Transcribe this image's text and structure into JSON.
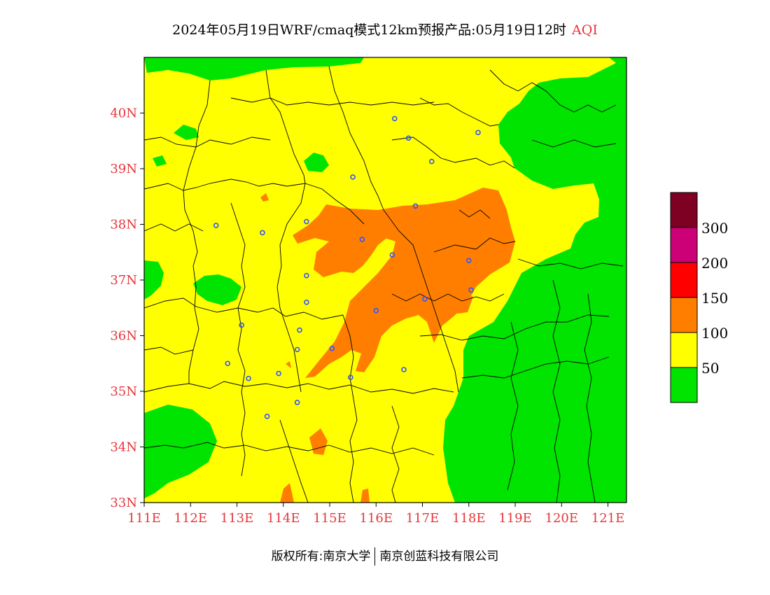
{
  "title": {
    "main": "2024年05月19日WRF/cmaq模式12km预报产品:05月19日12时",
    "variable": "AQI"
  },
  "axes": {
    "x_ticks": [
      "111E",
      "112E",
      "113E",
      "114E",
      "115E",
      "116E",
      "117E",
      "118E",
      "119E",
      "120E",
      "121E"
    ],
    "y_ticks": [
      "33N",
      "34N",
      "35N",
      "36N",
      "37N",
      "38N",
      "39N",
      "40N"
    ],
    "x_range": [
      111,
      121.4
    ],
    "y_range": [
      33,
      41
    ]
  },
  "legend": {
    "levels": [
      "50",
      "100",
      "150",
      "200",
      "300"
    ],
    "colors": [
      "#00e400",
      "#ffff00",
      "#ff7e00",
      "#ff0000",
      "#cc0077",
      "#7e0023"
    ]
  },
  "copyright": {
    "left": "版权所有:南京大学",
    "right": "南京创蓝科技有限公司"
  },
  "colors": {
    "good": "#00e400",
    "moderate": "#ffff00",
    "sensitive": "#ff7e00",
    "axis_text": "#e8343a",
    "station_marker": "#3355ff",
    "boundary": "#000000"
  },
  "stations": [
    {
      "lon": 116.4,
      "lat": 39.9
    },
    {
      "lon": 116.7,
      "lat": 39.55
    },
    {
      "lon": 118.2,
      "lat": 39.65
    },
    {
      "lon": 117.2,
      "lat": 39.13
    },
    {
      "lon": 115.5,
      "lat": 38.85
    },
    {
      "lon": 116.85,
      "lat": 38.33
    },
    {
      "lon": 112.55,
      "lat": 37.98
    },
    {
      "lon": 113.55,
      "lat": 37.85
    },
    {
      "lon": 114.5,
      "lat": 38.05
    },
    {
      "lon": 115.7,
      "lat": 37.73
    },
    {
      "lon": 116.35,
      "lat": 37.45
    },
    {
      "lon": 118.0,
      "lat": 37.35
    },
    {
      "lon": 114.5,
      "lat": 37.08
    },
    {
      "lon": 118.05,
      "lat": 36.82
    },
    {
      "lon": 117.05,
      "lat": 36.66
    },
    {
      "lon": 114.5,
      "lat": 36.6
    },
    {
      "lon": 116.0,
      "lat": 36.45
    },
    {
      "lon": 113.1,
      "lat": 36.19
    },
    {
      "lon": 114.35,
      "lat": 36.1
    },
    {
      "lon": 115.05,
      "lat": 35.77
    },
    {
      "lon": 114.3,
      "lat": 35.75
    },
    {
      "lon": 112.8,
      "lat": 35.5
    },
    {
      "lon": 116.6,
      "lat": 35.39
    },
    {
      "lon": 113.9,
      "lat": 35.32
    },
    {
      "lon": 115.45,
      "lat": 35.25
    },
    {
      "lon": 113.25,
      "lat": 35.23
    },
    {
      "lon": 114.3,
      "lat": 34.8
    },
    {
      "lon": 113.65,
      "lat": 34.55
    }
  ]
}
